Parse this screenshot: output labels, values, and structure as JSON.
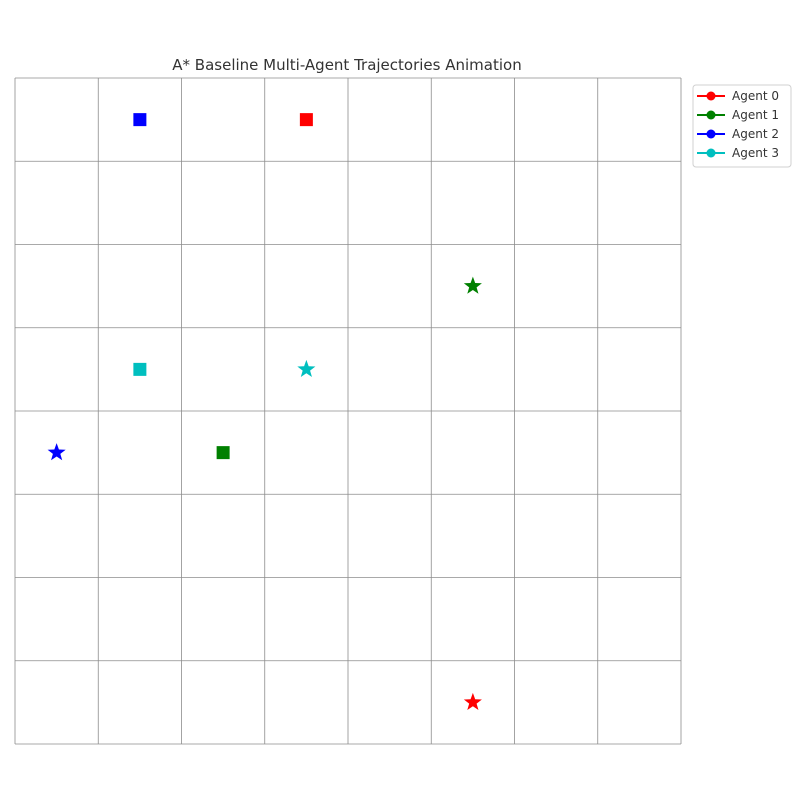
{
  "chart_data": {
    "type": "scatter",
    "title": "A* Baseline Multi-Agent Trajectories Animation",
    "xlabel": "",
    "ylabel": "",
    "xlim": [
      0,
      8
    ],
    "ylim": [
      0,
      8
    ],
    "grid": true,
    "axes_visible": false,
    "legend_position": "outside-top-right",
    "series": [
      {
        "name": "Agent 0",
        "color": "#ff0000",
        "start": {
          "x": 3.5,
          "y": 7.5,
          "marker": "square"
        },
        "goal": {
          "x": 5.5,
          "y": 0.5,
          "marker": "star"
        }
      },
      {
        "name": "Agent 1",
        "color": "#008000",
        "start": {
          "x": 2.5,
          "y": 3.5,
          "marker": "square"
        },
        "goal": {
          "x": 5.5,
          "y": 5.5,
          "marker": "star"
        }
      },
      {
        "name": "Agent 2",
        "color": "#0000ff",
        "start": {
          "x": 1.5,
          "y": 7.5,
          "marker": "square"
        },
        "goal": {
          "x": 0.5,
          "y": 3.5,
          "marker": "star"
        }
      },
      {
        "name": "Agent 3",
        "color": "#00bfbf",
        "start": {
          "x": 1.5,
          "y": 4.5,
          "marker": "square"
        },
        "goal": {
          "x": 3.5,
          "y": 4.5,
          "marker": "star"
        }
      }
    ]
  }
}
